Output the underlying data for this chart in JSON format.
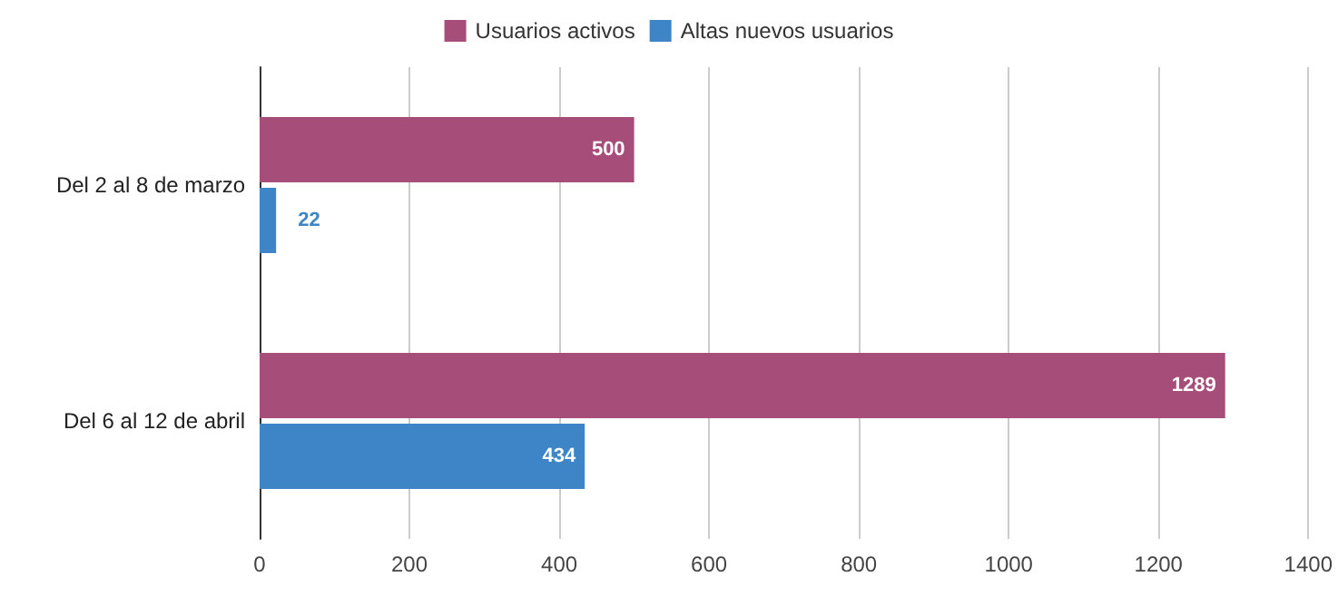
{
  "chart_data": {
    "type": "bar",
    "orientation": "horizontal",
    "categories": [
      "Del 2 al 8 de marzo",
      "Del 6 al 12 de abril"
    ],
    "series": [
      {
        "name": "Usuarios activos",
        "color": "#a64d79",
        "values": [
          500,
          1289
        ]
      },
      {
        "name": "Altas nuevos usuarios",
        "color": "#3d85c6",
        "values": [
          22,
          434
        ]
      }
    ],
    "xlim": [
      0,
      1400
    ],
    "xticks": [
      0,
      200,
      400,
      600,
      800,
      1000,
      1200,
      1400
    ],
    "grid": "x",
    "legend": "top",
    "data_labels": true
  }
}
